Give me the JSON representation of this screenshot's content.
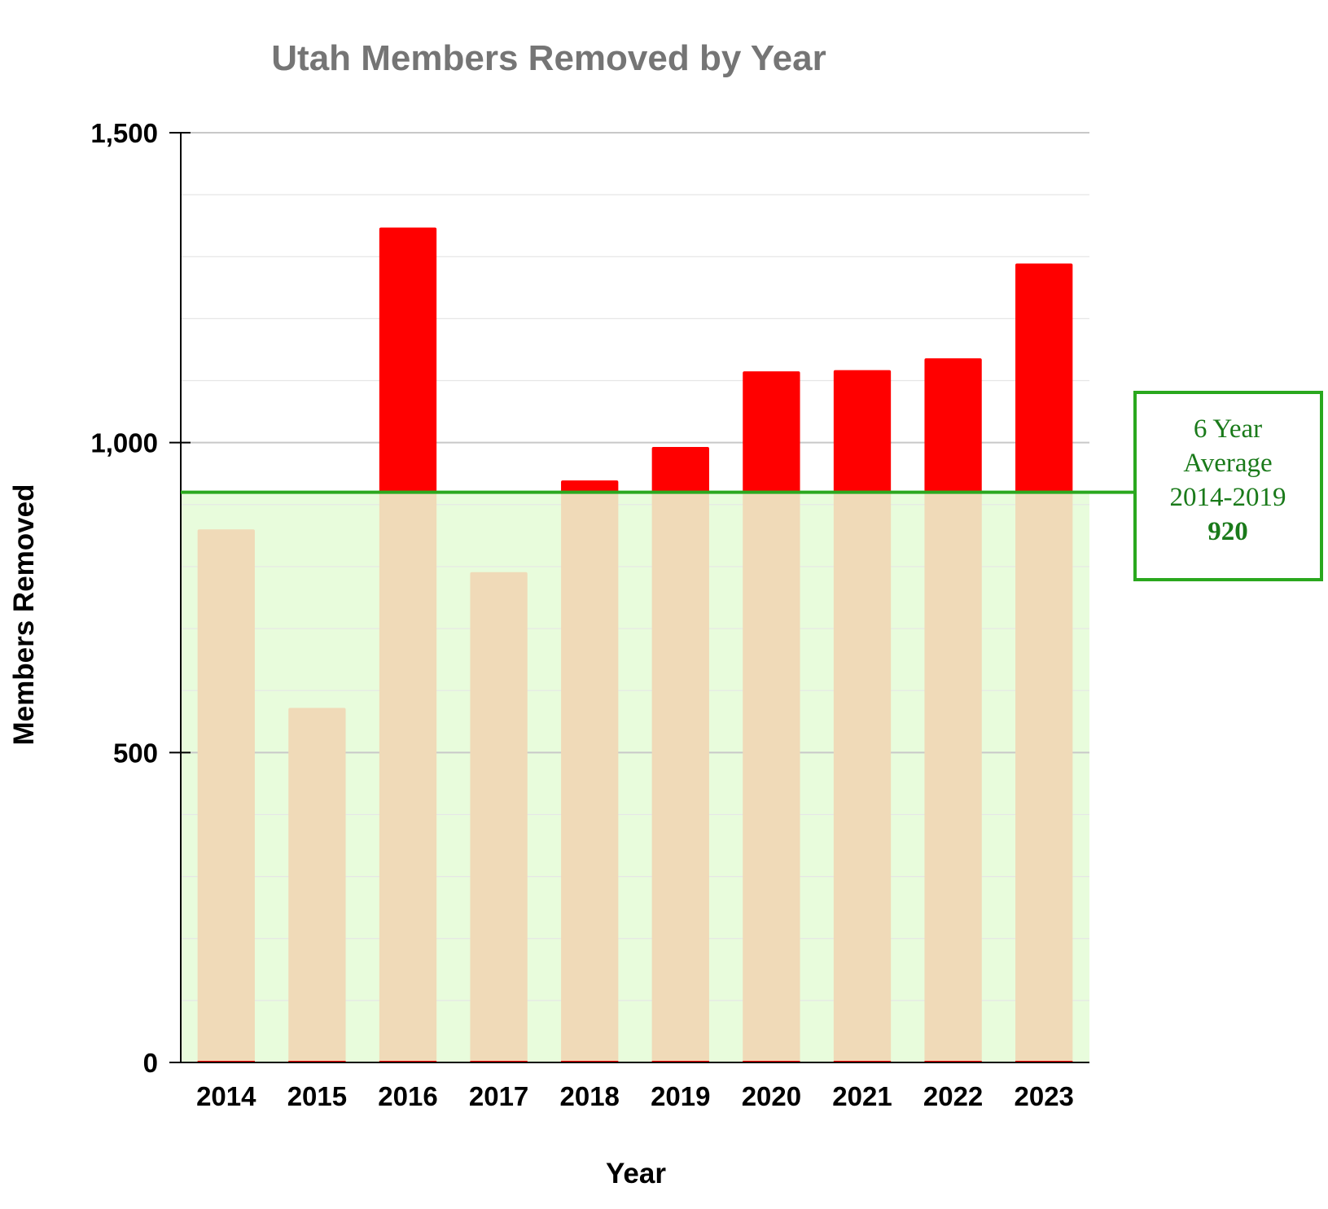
{
  "chart_data": {
    "type": "bar",
    "title": "Utah Members Removed by Year",
    "xlabel": "Year",
    "ylabel": "Members Removed",
    "categories": [
      "2014",
      "2015",
      "2016",
      "2017",
      "2018",
      "2019",
      "2020",
      "2021",
      "2022",
      "2023"
    ],
    "values": [
      860,
      572,
      1347,
      791,
      939,
      993,
      1115,
      1117,
      1136,
      1289
    ],
    "ylim": [
      0,
      1500
    ],
    "yticks": [
      0,
      500,
      1000,
      1500
    ],
    "ytick_labels": [
      "0",
      "500",
      "1,000",
      "1,500"
    ],
    "grid": true,
    "average": {
      "value": 920,
      "label_lines": [
        "6 Year",
        "Average",
        "2014-2019"
      ],
      "value_label": "920"
    },
    "colors": {
      "above_average": "#ff0000",
      "below_average": "#f0dab8",
      "average_band": "#e8fcdc",
      "average_line": "#2aa81e",
      "title": "#757575"
    }
  }
}
